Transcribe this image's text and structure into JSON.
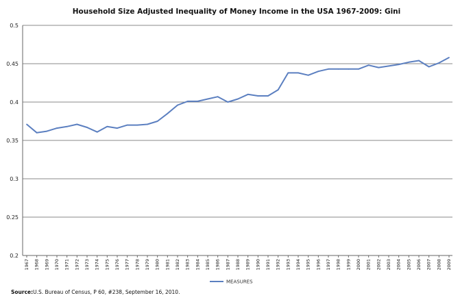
{
  "chart_data": {
    "type": "line",
    "title": "Household Size Adjusted Inequality of Money Income in the USA 1967-2009: Gini",
    "xlabel": "",
    "ylabel": "",
    "ylim": [
      0.2,
      0.5
    ],
    "yticks": [
      "0.2",
      "0.25",
      "0.3",
      "0.35",
      "0.4",
      "0.45",
      "0.5"
    ],
    "yticks_values": [
      0.2,
      0.25,
      0.3,
      0.35,
      0.4,
      0.45,
      0.5
    ],
    "grid": true,
    "legend_position": "bottom-center",
    "categories": [
      "1967",
      "1968",
      "1969",
      "1970",
      "1971",
      "1972",
      "1973",
      "1974",
      "1975",
      "1976",
      "1977",
      "1978",
      "1979",
      "1980",
      "1981",
      "1982",
      "1983",
      "1984",
      "1985",
      "1986",
      "1987",
      "1988",
      "1989",
      "1990",
      "1991",
      "1992",
      "1993",
      "1994",
      "1995",
      "1996",
      "1997",
      "1998",
      "1999",
      "2000",
      "2001",
      "2002",
      "2003",
      "2004",
      "2005",
      "2006",
      "2007",
      "2008",
      "2009"
    ],
    "series": [
      {
        "name": "MEASURES",
        "color": "#5b7fc0",
        "values": [
          0.371,
          0.36,
          0.362,
          0.366,
          0.368,
          0.371,
          0.367,
          0.361,
          0.368,
          0.366,
          0.37,
          0.37,
          0.371,
          0.375,
          0.385,
          0.396,
          0.401,
          0.401,
          0.404,
          0.407,
          0.4,
          0.404,
          0.41,
          0.408,
          0.408,
          0.416,
          0.438,
          0.438,
          0.435,
          0.44,
          0.443,
          0.443,
          0.443,
          0.443,
          0.448,
          0.445,
          0.447,
          0.449,
          0.452,
          0.454,
          0.446,
          0.451,
          0.458
        ]
      }
    ]
  },
  "source": {
    "label": "Source:",
    "text": "U.S. Bureau of Census, P 60, #238, September 16, 2010."
  }
}
